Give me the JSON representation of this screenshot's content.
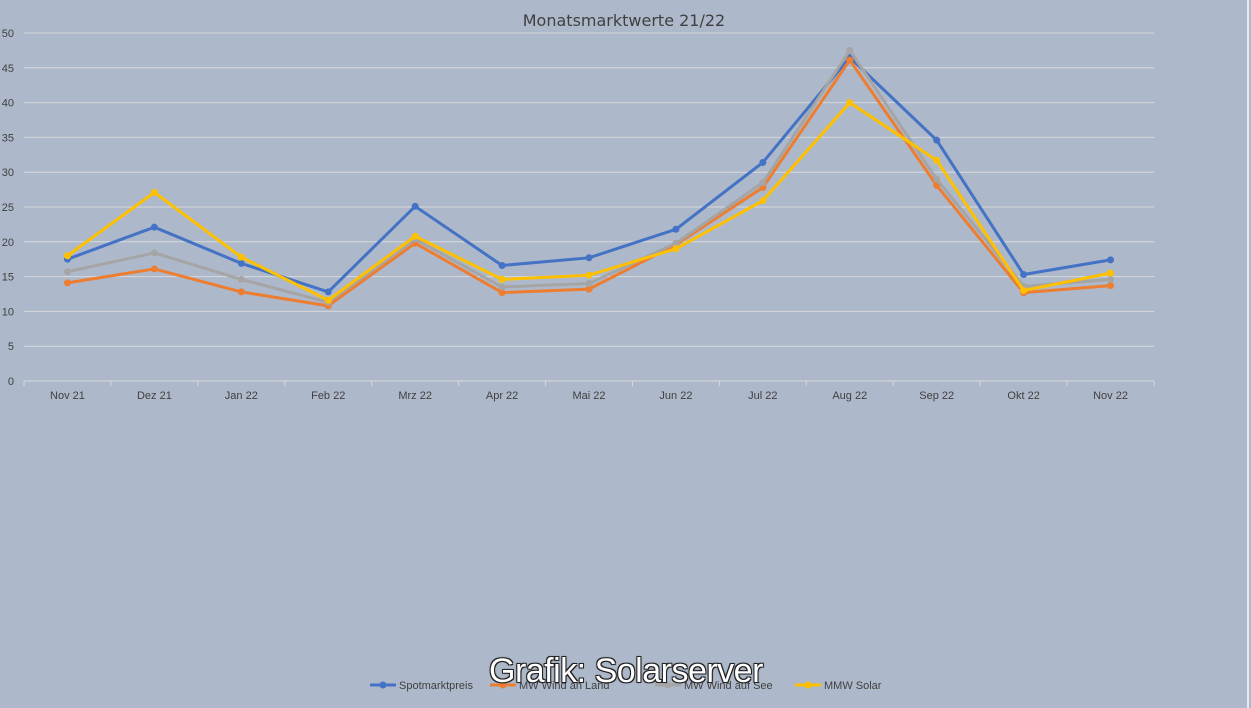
{
  "watermark": "Grafik: Solarserver",
  "chart_data": {
    "type": "line",
    "title": "Monatsmarktwerte 21/22",
    "xlabel": "",
    "ylabel": "",
    "categories": [
      "Nov 21",
      "Dez 21",
      "Jan 22",
      "Feb 22",
      "Mrz 22",
      "Apr 22",
      "Mai 22",
      "Jun 22",
      "Jul 22",
      "Aug 22",
      "Sep 22",
      "Okt 22",
      "Nov 22"
    ],
    "ylim": [
      0,
      50
    ],
    "yticks": [
      0,
      5,
      10,
      15,
      20,
      25,
      30,
      35,
      40,
      45,
      50
    ],
    "grid": true,
    "legend_position": "bottom",
    "series": [
      {
        "name": "Spotmarktpreis",
        "color": "#4472c4",
        "values": [
          17.5,
          22.1,
          16.9,
          12.8,
          25.1,
          16.6,
          17.7,
          21.8,
          31.4,
          46.5,
          34.6,
          15.3,
          17.4
        ]
      },
      {
        "name": "MW Wind an Land",
        "color": "#ed7d31",
        "values": [
          14.1,
          16.1,
          12.8,
          10.8,
          19.8,
          12.7,
          13.2,
          19.6,
          27.8,
          46.1,
          28.1,
          12.7,
          13.7
        ]
      },
      {
        "name": "MW Wind auf See",
        "color": "#a5a5a5",
        "values": [
          15.7,
          18.4,
          14.6,
          11.3,
          20.4,
          13.5,
          14.0,
          19.8,
          28.5,
          47.5,
          29.0,
          13.6,
          14.6
        ]
      },
      {
        "name": "MMW Solar",
        "color": "#ffc000",
        "values": [
          18.0,
          27.1,
          17.8,
          11.6,
          20.8,
          14.6,
          15.2,
          19.0,
          25.9,
          40.0,
          31.7,
          13.0,
          15.5
        ]
      }
    ]
  }
}
